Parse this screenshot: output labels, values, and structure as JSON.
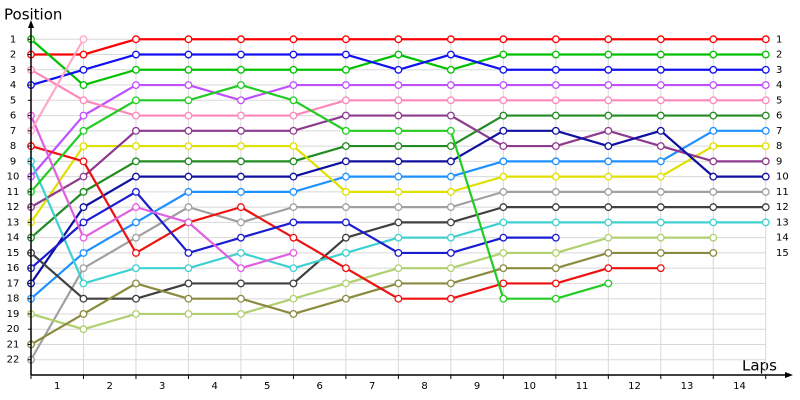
{
  "chart_data": {
    "type": "line",
    "y_label": "Position",
    "x_label": "Laps",
    "x": [
      0,
      1,
      2,
      3,
      4,
      5,
      6,
      7,
      8,
      9,
      10,
      11,
      12,
      13,
      14
    ],
    "xlim": [
      0,
      14.5
    ],
    "xticks": [
      {
        "value": 0.5,
        "label": "1"
      },
      {
        "value": 1.5,
        "label": "2"
      },
      {
        "value": 2.5,
        "label": "3"
      },
      {
        "value": 3.5,
        "label": "4"
      },
      {
        "value": 4.5,
        "label": "5"
      },
      {
        "value": 5.5,
        "label": "6"
      },
      {
        "value": 6.5,
        "label": "7"
      },
      {
        "value": 7.5,
        "label": "8"
      },
      {
        "value": 8.5,
        "label": "9"
      },
      {
        "value": 9.5,
        "label": "10"
      },
      {
        "value": 10.5,
        "label": "11"
      },
      {
        "value": 11.5,
        "label": "12"
      },
      {
        "value": 12.5,
        "label": "13"
      },
      {
        "value": 13.5,
        "label": "14"
      }
    ],
    "ylim": [
      23,
      0
    ],
    "yticks": [
      1,
      2,
      3,
      4,
      5,
      6,
      7,
      8,
      9,
      10,
      11,
      12,
      13,
      14,
      15,
      16,
      17,
      18,
      19,
      20,
      21,
      22
    ],
    "y2lim": [
      23,
      0
    ],
    "y2ticks": [
      1,
      2,
      3,
      4,
      5,
      6,
      7,
      8,
      9,
      10,
      11,
      12,
      13,
      14,
      15
    ],
    "grid": true,
    "series": [
      {
        "color": "#ff0000",
        "values": [
          2,
          2,
          1,
          1,
          1,
          1,
          1,
          1,
          1,
          1,
          1,
          1,
          1,
          1,
          1
        ]
      },
      {
        "color": "#00c000",
        "values": [
          1,
          4,
          3,
          3,
          3,
          3,
          3,
          2,
          3,
          2,
          2,
          2,
          2,
          2,
          2
        ]
      },
      {
        "color": "#1010f0",
        "values": [
          4,
          3,
          2,
          2,
          2,
          2,
          2,
          3,
          2,
          3,
          3,
          3,
          3,
          3,
          3
        ]
      },
      {
        "color": "#c050ff",
        "values": [
          10,
          6,
          4,
          4,
          5,
          4,
          4,
          4,
          4,
          4,
          4,
          4,
          4,
          4,
          4
        ]
      },
      {
        "color": "#ff88bb",
        "values": [
          3,
          5,
          6,
          6,
          6,
          6,
          5,
          5,
          5,
          5,
          5,
          5,
          5,
          5,
          5
        ]
      },
      {
        "color": "#228b22",
        "values": [
          14,
          11,
          9,
          9,
          9,
          9,
          8,
          8,
          8,
          6,
          6,
          6,
          6,
          6,
          6
        ]
      },
      {
        "color": "#1e90ff",
        "values": [
          18,
          15,
          13,
          11,
          11,
          11,
          10,
          10,
          10,
          9,
          9,
          9,
          9,
          7,
          7
        ]
      },
      {
        "color": "#e0e000",
        "values": [
          13,
          8,
          8,
          8,
          8,
          8,
          11,
          11,
          11,
          10,
          10,
          10,
          10,
          8,
          8
        ]
      },
      {
        "color": "#8e3a8e",
        "values": [
          12,
          10,
          7,
          7,
          7,
          7,
          6,
          6,
          6,
          8,
          8,
          7,
          8,
          9,
          9
        ]
      },
      {
        "color": "#1010a0",
        "values": [
          17,
          12,
          10,
          10,
          10,
          10,
          9,
          9,
          9,
          7,
          7,
          8,
          7,
          10,
          10
        ]
      },
      {
        "color": "#a0a0a0",
        "values": [
          22,
          16,
          14,
          12,
          13,
          12,
          12,
          12,
          12,
          11,
          11,
          11,
          11,
          11,
          11
        ]
      },
      {
        "color": "#404040",
        "values": [
          15,
          18,
          18,
          17,
          17,
          17,
          14,
          13,
          13,
          12,
          12,
          12,
          12,
          12,
          12
        ]
      },
      {
        "color": "#40d0d0",
        "values": [
          9,
          17,
          16,
          16,
          15,
          16,
          15,
          14,
          14,
          13,
          13,
          13,
          13,
          13,
          13
        ]
      },
      {
        "color": "#b0d070",
        "values": [
          19,
          20,
          19,
          19,
          19,
          18,
          17,
          16,
          16,
          15,
          15,
          14,
          14,
          14,
          null
        ]
      },
      {
        "color": "#8b8b40",
        "values": [
          21,
          19,
          17,
          18,
          18,
          19,
          18,
          17,
          17,
          16,
          16,
          15,
          15,
          15,
          null
        ]
      },
      {
        "color": "#ee1111",
        "values": [
          8,
          9,
          15,
          13,
          12,
          14,
          16,
          18,
          18,
          17,
          17,
          16,
          16,
          null,
          null
        ]
      },
      {
        "color": "#1c1cd0",
        "values": [
          16,
          13,
          11,
          15,
          14,
          13,
          13,
          15,
          15,
          14,
          14,
          null,
          null,
          null,
          null
        ]
      },
      {
        "color": "#22cc22",
        "values": [
          11,
          7,
          5,
          5,
          4,
          5,
          7,
          7,
          7,
          18,
          18,
          17,
          null,
          null,
          null
        ]
      },
      {
        "color": "#e060e0",
        "values": [
          6,
          14,
          12,
          13,
          16,
          15,
          null,
          null,
          null,
          null,
          null,
          null,
          null,
          null,
          null
        ]
      },
      {
        "color": "#ffa8c8",
        "values": [
          7,
          1,
          null,
          null,
          null,
          null,
          null,
          null,
          null,
          null,
          null,
          null,
          null,
          null,
          null
        ]
      }
    ]
  }
}
